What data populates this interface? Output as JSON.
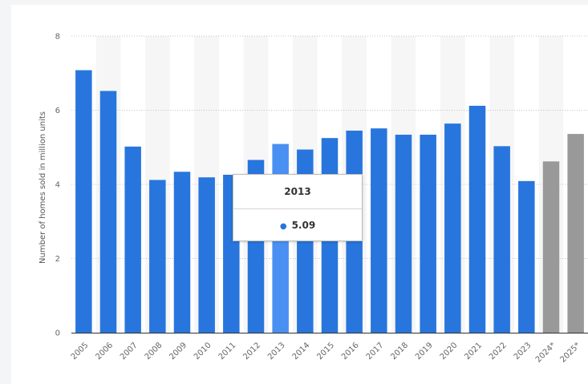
{
  "chart_data": {
    "type": "bar",
    "ylabel": "Number of homes sold in million units",
    "xlabel": "",
    "ylim": [
      0,
      8
    ],
    "yticks": [
      0,
      2,
      4,
      6,
      8
    ],
    "grid": true,
    "categories": [
      "2005",
      "2006",
      "2007",
      "2008",
      "2009",
      "2010",
      "2011",
      "2012",
      "2013",
      "2014",
      "2015",
      "2016",
      "2017",
      "2018",
      "2019",
      "2020",
      "2021",
      "2022",
      "2023",
      "2024*",
      "2025*"
    ],
    "values": [
      7.08,
      6.52,
      5.02,
      4.12,
      4.34,
      4.19,
      4.26,
      4.66,
      5.09,
      4.94,
      5.25,
      5.45,
      5.51,
      5.34,
      5.34,
      5.64,
      6.12,
      5.03,
      4.09,
      4.62,
      5.36
    ],
    "forecast": [
      false,
      false,
      false,
      false,
      false,
      false,
      false,
      false,
      false,
      false,
      false,
      false,
      false,
      false,
      false,
      false,
      false,
      false,
      false,
      true,
      true
    ],
    "highlighted_index": 8,
    "colors": {
      "bar": "#2876dd",
      "bar_highlight": "#4a90f2",
      "bar_forecast": "#999999",
      "grid": "#c4c4c4",
      "axis": "#333333",
      "band": "#f6f6f6"
    }
  },
  "tooltip": {
    "title": "2013",
    "value": "5.09"
  }
}
